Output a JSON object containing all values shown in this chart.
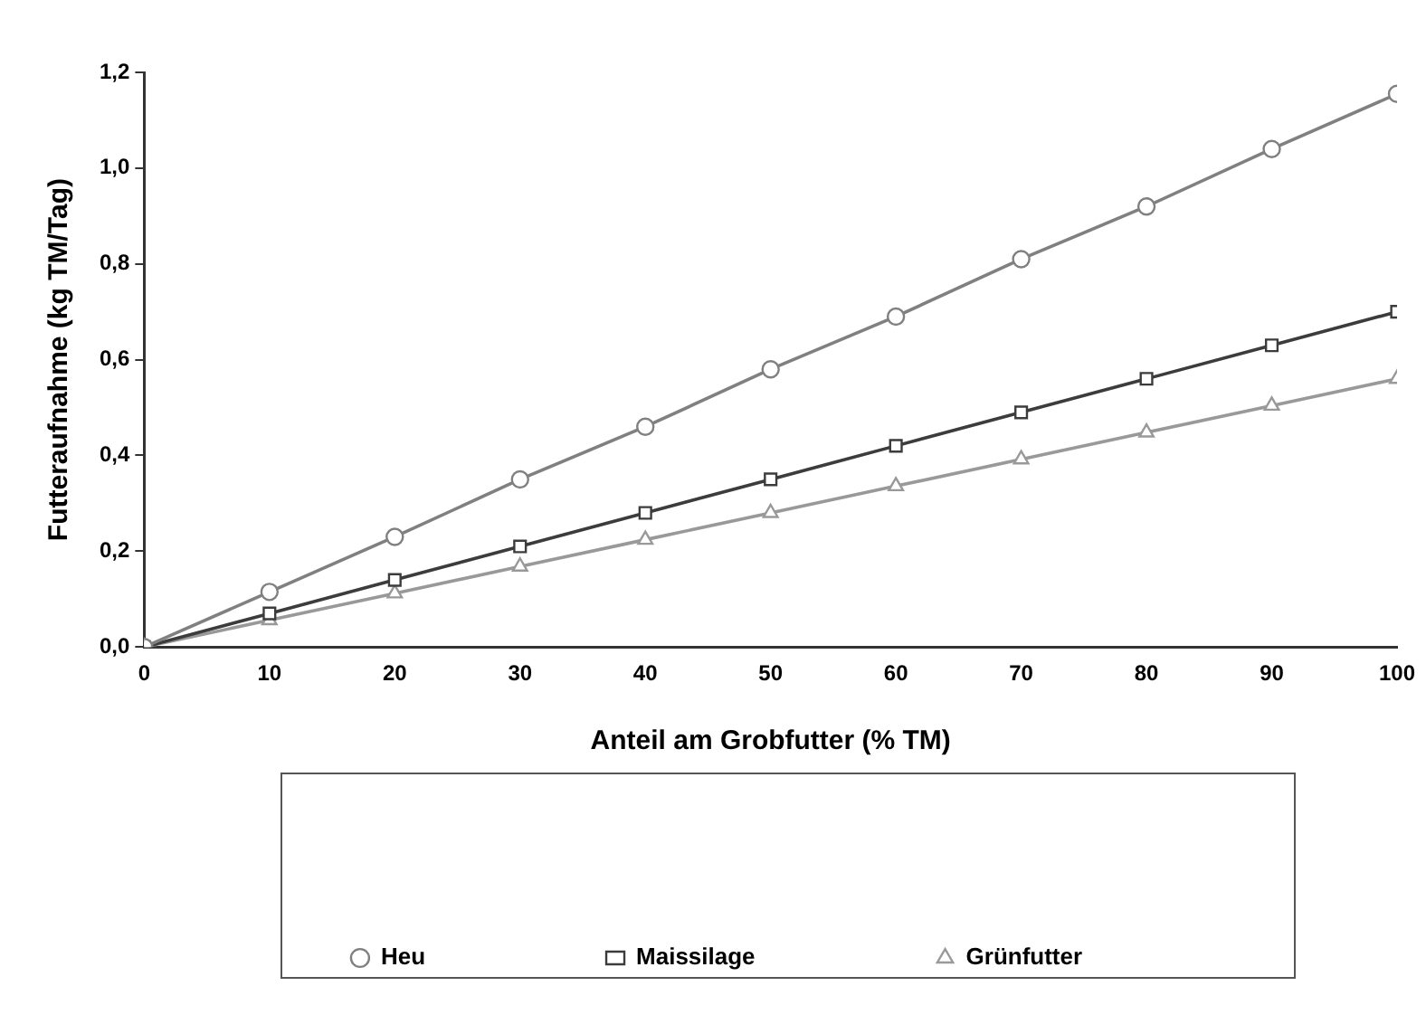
{
  "chart_data": {
    "type": "line",
    "xlabel": "Anteil am Grobfutter (% TM)",
    "ylabel": "Futteraufnahme (kg TM/Tag)",
    "x": [
      0,
      10,
      20,
      30,
      40,
      50,
      60,
      70,
      80,
      90,
      100
    ],
    "series": [
      {
        "name": "Heu",
        "color": "#808080",
        "marker": "circle",
        "values": [
          0,
          0.115,
          0.23,
          0.35,
          0.46,
          0.58,
          0.69,
          0.81,
          0.92,
          1.04,
          1.155
        ]
      },
      {
        "name": "Maissilage",
        "color": "#3c3c3c",
        "marker": "square",
        "values": [
          0,
          0.07,
          0.14,
          0.21,
          0.28,
          0.35,
          0.42,
          0.49,
          0.56,
          0.63,
          0.7
        ]
      },
      {
        "name": "Grünfutter",
        "color": "#999999",
        "marker": "triangle",
        "values": [
          0,
          0.056,
          0.112,
          0.168,
          0.224,
          0.28,
          0.336,
          0.392,
          0.448,
          0.504,
          0.56
        ]
      }
    ],
    "xlim": [
      0,
      100
    ],
    "xticks": [
      0,
      10,
      20,
      30,
      40,
      50,
      60,
      70,
      80,
      90,
      100
    ],
    "ylim": [
      0,
      1.2
    ],
    "yticks": [
      {
        "value": 0,
        "label": "0,0"
      },
      {
        "value": 0.2,
        "label": "0,2"
      },
      {
        "value": 0.4,
        "label": "0,4"
      },
      {
        "value": 0.6,
        "label": "0,6"
      },
      {
        "value": 0.8,
        "label": "0,8"
      },
      {
        "value": 1.0,
        "label": "1,0"
      },
      {
        "value": 1.2,
        "label": "1,2"
      }
    ],
    "grid": false,
    "legend": "bottom",
    "line_style": "solid"
  }
}
